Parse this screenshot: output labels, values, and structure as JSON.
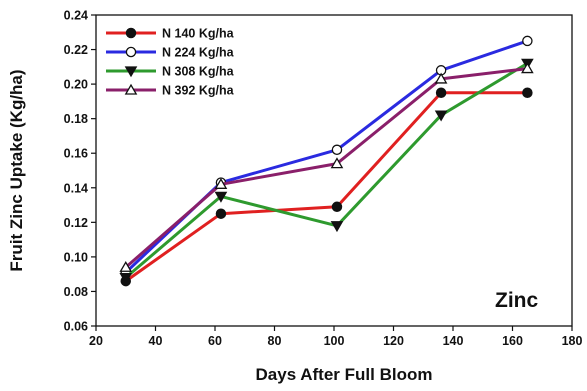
{
  "chart_data": {
    "type": "line",
    "xlabel": "Days After Full Bloom",
    "ylabel": "Fruit Zinc Uptake (Kg/ha)",
    "xlim": [
      20,
      180
    ],
    "ylim": [
      0.06,
      0.24
    ],
    "xticks": [
      "20",
      "40",
      "60",
      "80",
      "100",
      "120",
      "140",
      "160",
      "180"
    ],
    "yticks": [
      "0.06",
      "0.08",
      "0.10",
      "0.12",
      "0.14",
      "0.16",
      "0.18",
      "0.20",
      "0.22",
      "0.24"
    ],
    "grid": false,
    "legend_position": "top-left",
    "annotation": "Zinc",
    "series": [
      {
        "name": "N 140 Kg/ha",
        "color": "#e02020",
        "marker": "circle-filled",
        "points": [
          [
            30,
            0.086
          ],
          [
            62,
            0.125
          ],
          [
            101,
            0.129
          ],
          [
            136,
            0.195
          ],
          [
            165,
            0.195
          ]
        ]
      },
      {
        "name": "N 224 Kg/ha",
        "color": "#2a2ae0",
        "marker": "circle-open",
        "points": [
          [
            30,
            0.091
          ],
          [
            62,
            0.143
          ],
          [
            101,
            0.162
          ],
          [
            136,
            0.208
          ],
          [
            165,
            0.225
          ]
        ]
      },
      {
        "name": "N 308 Kg/ha",
        "color": "#2e9a2e",
        "marker": "triangle-down-filled",
        "points": [
          [
            30,
            0.088
          ],
          [
            62,
            0.135
          ],
          [
            101,
            0.118
          ],
          [
            136,
            0.182
          ],
          [
            165,
            0.212
          ]
        ]
      },
      {
        "name": "N 392 Kg/ha",
        "color": "#8a1f6a",
        "marker": "triangle-up-open",
        "points": [
          [
            30,
            0.094
          ],
          [
            62,
            0.142
          ],
          [
            101,
            0.154
          ],
          [
            136,
            0.203
          ],
          [
            165,
            0.209
          ]
        ]
      }
    ]
  }
}
